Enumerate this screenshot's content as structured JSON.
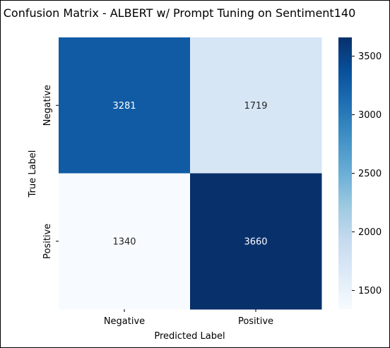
{
  "chart_data": {
    "type": "heatmap",
    "title": "Confusion Matrix - ALBERT w/ Prompt Tuning on Sentiment140",
    "xlabel": "Predicted Label",
    "ylabel": "True Label",
    "x_categories": [
      "Negative",
      "Positive"
    ],
    "y_categories": [
      "Negative",
      "Positive"
    ],
    "values": [
      [
        3281,
        1719
      ],
      [
        1340,
        3660
      ]
    ],
    "colormap": "Blues",
    "color_range": [
      1340,
      3660
    ],
    "colorbar": {
      "ticks": [
        1500,
        2000,
        2500,
        3000,
        3500
      ]
    },
    "annotated": true,
    "grid": false
  }
}
